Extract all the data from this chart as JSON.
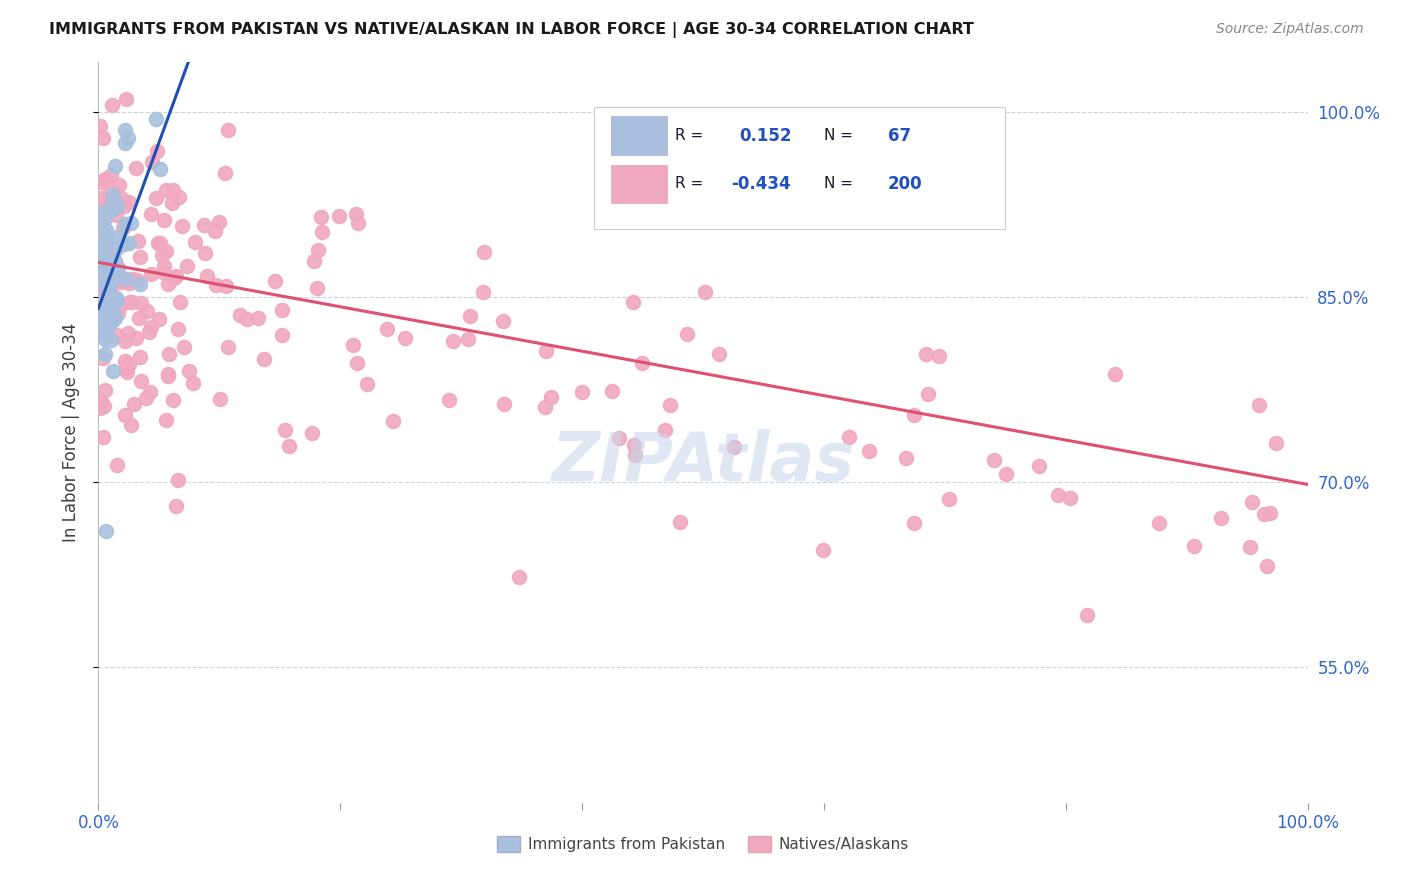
{
  "title": "IMMIGRANTS FROM PAKISTAN VS NATIVE/ALASKAN IN LABOR FORCE | AGE 30-34 CORRELATION CHART",
  "source": "Source: ZipAtlas.com",
  "ylabel": "In Labor Force | Age 30-34",
  "ytick_labels": [
    "100.0%",
    "85.0%",
    "70.0%",
    "55.0%"
  ],
  "ytick_values": [
    1.0,
    0.85,
    0.7,
    0.55
  ],
  "xlim": [
    0.0,
    1.0
  ],
  "ylim": [
    0.44,
    1.04
  ],
  "legend_r1": "R = ",
  "legend_val1": "0.152",
  "legend_n1": "N = ",
  "legend_nval1": "67",
  "legend_r2": "R = -0.434",
  "legend_val2": "-0.434",
  "legend_n2": "N = ",
  "legend_nval2": "200",
  "blue_color": "#a8c0de",
  "pink_color": "#f0a8be",
  "blue_line_color": "#2050b0",
  "pink_line_color": "#e05070",
  "blue_dash_color": "#88aad0",
  "watermark": "ZIPAtlas",
  "watermark_color": "#c8d8ea",
  "bg_color": "#ffffff",
  "grid_color": "#c8d4e4",
  "legend_text_color": "#1a1a2e",
  "legend_val_color": "#2050c0",
  "axis_label_color": "#3366cc",
  "ylabel_color": "#404040"
}
